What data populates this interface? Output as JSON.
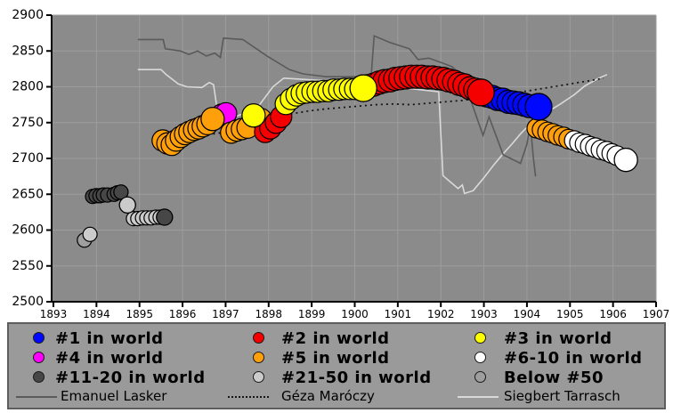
{
  "chart_data": {
    "type": "scatter",
    "title": "",
    "x_axis": {
      "ticks": [
        1893,
        1894,
        1895,
        1896,
        1897,
        1898,
        1899,
        1900,
        1901,
        1902,
        1903,
        1904,
        1905,
        1906,
        1907
      ],
      "range": [
        1893,
        1907
      ],
      "label": ""
    },
    "y_axis": {
      "ticks": [
        2500,
        2550,
        2600,
        2650,
        2700,
        2750,
        2800,
        2850,
        2900
      ],
      "range": [
        2500,
        2900
      ],
      "label": ""
    },
    "grid": true,
    "colors": {
      "plot_bg": "#8B8B8B",
      "gridline": "#9D9D9D",
      "axis": "#000000",
      "rank_categories": {
        "1": "#0008FF",
        "2": "#F50000",
        "3": "#FFFF00",
        "4": "#FF00FF",
        "5": "#FFA00A",
        "6-10": "#FFFFFF",
        "11-20": "#474747",
        "21-50": "#CBCBCB",
        "below-50": "#9E9E9E"
      },
      "lasker_line": "#5A5A5A",
      "maroczy_line": "#151515",
      "tarrasch_line": "#D9D9D9"
    },
    "player_points": [
      [
        1893.72,
        2586,
        "below-50",
        8,
        0
      ],
      [
        1893.85,
        2594,
        "21-50",
        8,
        0
      ],
      [
        1893.91,
        2647,
        "11-20",
        8,
        0
      ],
      [
        1893.99,
        2648,
        "11-20",
        8,
        0
      ],
      [
        1894.08,
        2648,
        "11-20",
        8,
        0
      ],
      [
        1894.16,
        2649,
        "11-20",
        8,
        0
      ],
      [
        1894.26,
        2649,
        "11-20",
        8,
        0
      ],
      [
        1894.41,
        2650,
        "11-20",
        8,
        0
      ],
      [
        1894.49,
        2652,
        "11-20",
        8,
        0
      ],
      [
        1894.57,
        2653,
        "11-20",
        8,
        1
      ],
      [
        1894.72,
        2635,
        "21-50",
        9,
        1
      ],
      [
        1894.86,
        2616,
        "21-50",
        8,
        0
      ],
      [
        1894.96,
        2616,
        "21-50",
        8,
        0
      ],
      [
        1895.07,
        2617,
        "21-50",
        8,
        0
      ],
      [
        1895.17,
        2617,
        "21-50",
        8,
        0
      ],
      [
        1895.27,
        2617,
        "21-50",
        8,
        0
      ],
      [
        1895.38,
        2618,
        "21-50",
        8,
        0
      ],
      [
        1895.48,
        2618,
        "21-50",
        8,
        0
      ],
      [
        1895.58,
        2618,
        "11-20",
        9,
        1
      ],
      [
        1895.54,
        2725,
        "5",
        12,
        0
      ],
      [
        1895.65,
        2721,
        "5",
        12,
        0
      ],
      [
        1895.75,
        2719,
        "5",
        12,
        0
      ],
      [
        1895.85,
        2725,
        "5",
        12,
        0
      ],
      [
        1895.96,
        2730,
        "5",
        12,
        0
      ],
      [
        1896.06,
        2734,
        "5",
        12,
        0
      ],
      [
        1896.16,
        2737,
        "5",
        12,
        0
      ],
      [
        1896.27,
        2740,
        "5",
        12,
        0
      ],
      [
        1896.37,
        2742,
        "5",
        12,
        0
      ],
      [
        1896.47,
        2745,
        "5",
        12,
        0
      ],
      [
        1896.58,
        2748,
        "5",
        12,
        0
      ],
      [
        1896.7,
        2755,
        "5",
        13,
        1
      ],
      [
        1896.91,
        2761,
        "4",
        12,
        0
      ],
      [
        1897.01,
        2763,
        "4",
        12,
        0
      ],
      [
        1897.13,
        2736,
        "5",
        12,
        0
      ],
      [
        1897.26,
        2739,
        "5",
        12,
        0
      ],
      [
        1897.38,
        2741,
        "5",
        12,
        0
      ],
      [
        1897.51,
        2743,
        "5",
        12,
        0
      ],
      [
        1897.65,
        2760,
        "3",
        13,
        1
      ],
      [
        1897.82,
        2755,
        "5",
        12,
        0
      ],
      [
        1897.92,
        2737,
        "2",
        12,
        0
      ],
      [
        1898.04,
        2742,
        "2",
        12,
        0
      ],
      [
        1898.17,
        2750,
        "2",
        12,
        0
      ],
      [
        1898.29,
        2758,
        "2",
        12,
        0
      ],
      [
        1898.4,
        2776,
        "3",
        12,
        0
      ],
      [
        1898.52,
        2783,
        "3",
        12,
        0
      ],
      [
        1898.65,
        2788,
        "3",
        12,
        0
      ],
      [
        1898.77,
        2791,
        "3",
        12,
        0
      ],
      [
        1898.89,
        2792,
        "3",
        12,
        0
      ],
      [
        1899.02,
        2793,
        "3",
        12,
        0
      ],
      [
        1899.14,
        2793,
        "3",
        12,
        0
      ],
      [
        1899.27,
        2794,
        "3",
        12,
        0
      ],
      [
        1899.39,
        2794,
        "3",
        12,
        0
      ],
      [
        1899.51,
        2796,
        "3",
        12,
        0
      ],
      [
        1899.64,
        2796,
        "3",
        12,
        0
      ],
      [
        1899.76,
        2797,
        "3",
        12,
        0
      ],
      [
        1899.89,
        2797,
        "3",
        12,
        0
      ],
      [
        1900.01,
        2797,
        "3",
        12,
        0
      ],
      [
        1900.2,
        2798,
        "3",
        15,
        1
      ],
      [
        1900.32,
        2801,
        "2",
        13,
        0
      ],
      [
        1900.44,
        2803,
        "2",
        13,
        0
      ],
      [
        1900.57,
        2806,
        "2",
        13,
        0
      ],
      [
        1900.69,
        2808,
        "2",
        13,
        0
      ],
      [
        1900.82,
        2809,
        "2",
        13,
        0
      ],
      [
        1900.94,
        2811,
        "2",
        13,
        0
      ],
      [
        1901.06,
        2812,
        "2",
        13,
        0
      ],
      [
        1901.19,
        2813,
        "2",
        13,
        0
      ],
      [
        1901.31,
        2814,
        "2",
        13,
        0
      ],
      [
        1901.44,
        2814,
        "2",
        13,
        0
      ],
      [
        1901.56,
        2814,
        "2",
        13,
        0
      ],
      [
        1901.69,
        2813,
        "2",
        13,
        0
      ],
      [
        1901.81,
        2813,
        "2",
        13,
        0
      ],
      [
        1901.93,
        2812,
        "2",
        13,
        0
      ],
      [
        1902.06,
        2811,
        "2",
        13,
        0
      ],
      [
        1902.18,
        2809,
        "2",
        13,
        0
      ],
      [
        1902.31,
        2807,
        "2",
        13,
        0
      ],
      [
        1902.43,
        2804,
        "2",
        13,
        0
      ],
      [
        1902.55,
        2802,
        "2",
        13,
        0
      ],
      [
        1902.68,
        2798,
        "2",
        13,
        0
      ],
      [
        1902.8,
        2796,
        "2",
        13,
        0
      ],
      [
        1902.93,
        2792,
        "2",
        15,
        1
      ],
      [
        1903.07,
        2788,
        "1",
        13,
        0
      ],
      [
        1903.19,
        2786,
        "1",
        13,
        0
      ],
      [
        1903.32,
        2783,
        "1",
        13,
        0
      ],
      [
        1903.44,
        2782,
        "1",
        13,
        0
      ],
      [
        1903.57,
        2779,
        "1",
        13,
        0
      ],
      [
        1903.69,
        2778,
        "1",
        13,
        0
      ],
      [
        1903.81,
        2777,
        "1",
        13,
        0
      ],
      [
        1903.94,
        2775,
        "1",
        13,
        0
      ],
      [
        1904.06,
        2773,
        "1",
        13,
        0
      ],
      [
        1904.27,
        2772,
        "1",
        15,
        1
      ],
      [
        1904.23,
        2742,
        "5",
        11,
        0
      ],
      [
        1904.35,
        2740,
        "5",
        11,
        0
      ],
      [
        1904.48,
        2737,
        "5",
        11,
        0
      ],
      [
        1904.6,
        2735,
        "5",
        11,
        0
      ],
      [
        1904.72,
        2732,
        "5",
        11,
        0
      ],
      [
        1904.85,
        2730,
        "5",
        11,
        0
      ],
      [
        1904.97,
        2727,
        "5",
        11,
        0
      ],
      [
        1905.1,
        2725,
        "6-10",
        11,
        0
      ],
      [
        1905.22,
        2722,
        "6-10",
        11,
        0
      ],
      [
        1905.35,
        2720,
        "6-10",
        11,
        0
      ],
      [
        1905.47,
        2717,
        "6-10",
        11,
        0
      ],
      [
        1905.59,
        2715,
        "6-10",
        11,
        0
      ],
      [
        1905.72,
        2712,
        "6-10",
        11,
        0
      ],
      [
        1905.85,
        2710,
        "6-10",
        11,
        0
      ],
      [
        1905.97,
        2707,
        "6-10",
        11,
        0
      ],
      [
        1906.09,
        2704,
        "6-10",
        11,
        0
      ],
      [
        1906.3,
        2698,
        "6-10",
        13,
        1
      ]
    ],
    "lines": {
      "emanuel_lasker": [
        [
          1894.96,
          2866
        ],
        [
          1895.55,
          2866
        ],
        [
          1895.6,
          2853
        ],
        [
          1895.95,
          2850
        ],
        [
          1896.15,
          2845
        ],
        [
          1896.35,
          2850
        ],
        [
          1896.55,
          2843
        ],
        [
          1896.75,
          2847
        ],
        [
          1896.88,
          2841
        ],
        [
          1896.95,
          2868
        ],
        [
          1897.4,
          2866
        ],
        [
          1897.96,
          2843
        ],
        [
          1898.48,
          2824
        ],
        [
          1898.8,
          2818
        ],
        [
          1899.34,
          2814
        ],
        [
          1900.38,
          2814
        ],
        [
          1900.45,
          2871
        ],
        [
          1900.81,
          2862
        ],
        [
          1901.27,
          2853
        ],
        [
          1901.47,
          2838
        ],
        [
          1901.72,
          2840
        ],
        [
          1902.09,
          2832
        ],
        [
          1902.26,
          2828
        ],
        [
          1902.44,
          2818
        ],
        [
          1902.7,
          2780
        ],
        [
          1902.98,
          2732
        ],
        [
          1903.12,
          2758
        ],
        [
          1903.45,
          2705
        ],
        [
          1903.69,
          2698
        ],
        [
          1903.85,
          2693
        ],
        [
          1904.0,
          2720
        ],
        [
          1904.08,
          2748
        ],
        [
          1904.15,
          2700
        ],
        [
          1904.2,
          2675
        ]
      ],
      "geza_maroczy": [
        [
          1896.1,
          2728
        ],
        [
          1896.4,
          2731
        ],
        [
          1896.7,
          2734
        ],
        [
          1896.9,
          2736
        ],
        [
          1897.3,
          2742
        ],
        [
          1897.7,
          2750
        ],
        [
          1898.1,
          2757
        ],
        [
          1898.5,
          2762
        ],
        [
          1898.9,
          2766
        ],
        [
          1899.3,
          2769
        ],
        [
          1899.7,
          2771
        ],
        [
          1900.1,
          2773
        ],
        [
          1900.5,
          2775
        ],
        [
          1900.9,
          2776
        ],
        [
          1901.3,
          2775
        ],
        [
          1901.7,
          2777
        ],
        [
          1902.1,
          2779
        ],
        [
          1902.5,
          2781
        ],
        [
          1902.9,
          2784
        ],
        [
          1903.3,
          2787
        ],
        [
          1903.7,
          2791
        ],
        [
          1904.1,
          2795
        ],
        [
          1904.5,
          2799
        ],
        [
          1904.9,
          2803
        ],
        [
          1905.2,
          2806
        ],
        [
          1905.5,
          2809
        ],
        [
          1905.78,
          2812
        ]
      ],
      "siegbert_tarrasch": [
        [
          1894.96,
          2824
        ],
        [
          1895.5,
          2824
        ],
        [
          1895.62,
          2817
        ],
        [
          1895.9,
          2804
        ],
        [
          1896.1,
          2800
        ],
        [
          1896.45,
          2799
        ],
        [
          1896.62,
          2806
        ],
        [
          1896.72,
          2803
        ],
        [
          1896.8,
          2770
        ],
        [
          1897.2,
          2758
        ],
        [
          1897.7,
          2768
        ],
        [
          1898.1,
          2800
        ],
        [
          1898.35,
          2812
        ],
        [
          1899.2,
          2809
        ],
        [
          1900.2,
          2804
        ],
        [
          1901.2,
          2798
        ],
        [
          1901.95,
          2793
        ],
        [
          1902.05,
          2676
        ],
        [
          1902.4,
          2658
        ],
        [
          1902.5,
          2663
        ],
        [
          1902.55,
          2651
        ],
        [
          1902.75,
          2655
        ],
        [
          1903.0,
          2673
        ],
        [
          1903.23,
          2691
        ],
        [
          1903.44,
          2706
        ],
        [
          1903.65,
          2720
        ],
        [
          1903.86,
          2735
        ],
        [
          1904.06,
          2747
        ],
        [
          1904.4,
          2762
        ],
        [
          1904.78,
          2776
        ],
        [
          1905.1,
          2789
        ],
        [
          1905.34,
          2801
        ],
        [
          1905.67,
          2812
        ],
        [
          1905.86,
          2817
        ]
      ]
    }
  },
  "legend": {
    "rank_entries": [
      {
        "label": "#1 in world",
        "category": "1",
        "col": 0,
        "row": 0
      },
      {
        "label": "#2 in world",
        "category": "2",
        "col": 1,
        "row": 0
      },
      {
        "label": "#3 in world",
        "category": "3",
        "col": 2,
        "row": 0
      },
      {
        "label": "#4 in world",
        "category": "4",
        "col": 0,
        "row": 1
      },
      {
        "label": "#5 in world",
        "category": "5",
        "col": 1,
        "row": 1
      },
      {
        "label": "#6-10 in world",
        "category": "6-10",
        "col": 2,
        "row": 1
      },
      {
        "label": "#11-20 in world",
        "category": "11-20",
        "col": 0,
        "row": 2
      },
      {
        "label": "#21-50 in world",
        "category": "21-50",
        "col": 1,
        "row": 2
      },
      {
        "label": "Below #50",
        "category": "below-50",
        "col": 2,
        "row": 2
      }
    ],
    "line_entries": [
      {
        "label": "Emanuel Lasker",
        "line_key": "lasker_line",
        "style": "solid",
        "col": 0
      },
      {
        "label": "Géza Maróczy",
        "line_key": "maroczy_line",
        "style": "dotted",
        "col": 1
      },
      {
        "label": "Siegbert Tarrasch",
        "line_key": "tarrasch_line",
        "style": "solid",
        "col": 2
      }
    ]
  }
}
